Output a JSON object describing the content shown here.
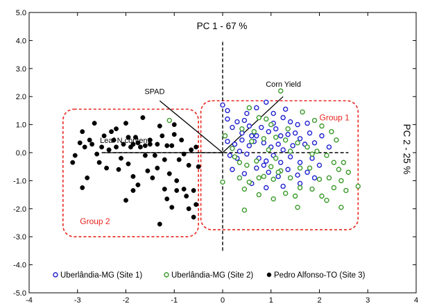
{
  "chart_data": {
    "type": "scatter",
    "x_axis_title": "PC 1 - 67 %",
    "y_axis_title": "PC 2 - 25 %",
    "xlim": [
      -4,
      4
    ],
    "ylim": [
      -5,
      5
    ],
    "x_ticks": [
      -4,
      -3,
      -2,
      -1,
      0,
      1,
      2,
      3,
      4
    ],
    "y_ticks": [
      5.0,
      4.0,
      3.0,
      2.0,
      1.0,
      0.0,
      -1.0,
      -2.0,
      -3.0,
      -4.0,
      -5.0
    ],
    "x_tick_labels": [
      "-4",
      "-3",
      "-2",
      "-1",
      "0",
      "1",
      "2",
      "3",
      "4"
    ],
    "y_tick_labels": [
      "5.0",
      "4.0",
      "3.0",
      "2.0",
      "1.0",
      "0.0",
      "-1.0",
      "-2.0",
      "-3.0",
      "-4.0",
      "-5.0"
    ],
    "colors": {
      "site1": "#1f1fd0",
      "site2": "#3a9a2a",
      "site3": "#000000",
      "group": "#e8261f"
    },
    "groups": [
      {
        "label": "Group 1",
        "x_range": [
          -0.45,
          2.8
        ],
        "y_range": [
          -2.75,
          1.85
        ]
      },
      {
        "label": "Group 2",
        "x_range": [
          -3.3,
          -0.5
        ],
        "y_range": [
          -3.0,
          1.55
        ]
      }
    ],
    "vectors": [
      {
        "label": "Corn Yield",
        "x": 1.25,
        "y": 2.0
      },
      {
        "label": "SPAD",
        "x": -1.3,
        "y": 1.85
      },
      {
        "label": "Leaf N content",
        "x": -2.45,
        "y": 0.0
      }
    ],
    "axis_dashes": {
      "x": [
        -2.5,
        2.6
      ],
      "y": [
        -3.5,
        4.0
      ]
    },
    "series": [
      {
        "name": "Uberlândia-MG (Site 1)",
        "marker": "open-circle",
        "points": [
          [
            0.0,
            1.7
          ],
          [
            0.1,
            1.5
          ],
          [
            0.3,
            1.1
          ],
          [
            0.5,
            1.4
          ],
          [
            0.7,
            1.6
          ],
          [
            0.9,
            1.8
          ],
          [
            1.05,
            1.4
          ],
          [
            1.3,
            1.55
          ],
          [
            1.4,
            1.1
          ],
          [
            1.55,
            1.0
          ],
          [
            0.2,
            0.9
          ],
          [
            0.4,
            0.7
          ],
          [
            0.55,
            0.95
          ],
          [
            0.7,
            0.6
          ],
          [
            0.8,
            0.9
          ],
          [
            0.95,
            0.75
          ],
          [
            1.1,
            0.85
          ],
          [
            1.2,
            0.6
          ],
          [
            1.35,
            0.65
          ],
          [
            1.5,
            0.7
          ],
          [
            1.6,
            0.5
          ],
          [
            1.8,
            0.7
          ],
          [
            0.1,
            0.4
          ],
          [
            0.25,
            0.3
          ],
          [
            0.4,
            0.45
          ],
          [
            0.55,
            0.25
          ],
          [
            0.65,
            0.4
          ],
          [
            0.85,
            0.35
          ],
          [
            1.0,
            0.2
          ],
          [
            1.15,
            0.3
          ],
          [
            1.25,
            0.1
          ],
          [
            1.45,
            0.25
          ],
          [
            1.7,
            0.3
          ],
          [
            1.9,
            0.35
          ],
          [
            2.05,
            0.6
          ],
          [
            2.2,
            0.2
          ],
          [
            0.15,
            -0.1
          ],
          [
            0.3,
            -0.2
          ],
          [
            0.5,
            -0.05
          ],
          [
            0.75,
            -0.2
          ],
          [
            0.9,
            -0.3
          ],
          [
            1.05,
            -0.1
          ],
          [
            1.2,
            -0.35
          ],
          [
            1.4,
            -0.15
          ],
          [
            1.6,
            -0.35
          ],
          [
            1.85,
            -0.2
          ],
          [
            2.0,
            -0.45
          ],
          [
            0.2,
            -0.6
          ],
          [
            0.45,
            -0.75
          ],
          [
            0.7,
            -0.55
          ],
          [
            0.95,
            -0.7
          ],
          [
            1.15,
            -0.85
          ],
          [
            1.35,
            -0.6
          ],
          [
            1.55,
            -0.8
          ],
          [
            1.75,
            -0.7
          ],
          [
            0.6,
            -1.1
          ],
          [
            0.9,
            -1.25
          ],
          [
            1.25,
            -1.2
          ],
          [
            1.6,
            -1.1
          ],
          [
            0.85,
            -0.45
          ],
          [
            0.35,
            0.05
          ],
          [
            0.6,
            0.6
          ],
          [
            1.05,
            1.05
          ],
          [
            1.25,
            1.25
          ],
          [
            0.45,
            1.15
          ],
          [
            1.75,
            1.05
          ],
          [
            0.1,
            1.2
          ],
          [
            1.9,
            -0.9
          ]
        ]
      },
      {
        "name": "Uberlândia-MG (Site 2)",
        "marker": "open-circle",
        "points": [
          [
            -1.1,
            1.15
          ],
          [
            0.05,
            0.6
          ],
          [
            0.2,
            0.15
          ],
          [
            0.35,
            -0.35
          ],
          [
            0.55,
            1.6
          ],
          [
            0.75,
            1.25
          ],
          [
            0.9,
            1.2
          ],
          [
            1.0,
            1.0
          ],
          [
            1.2,
            2.2
          ],
          [
            1.35,
            0.85
          ],
          [
            1.65,
            1.45
          ],
          [
            1.9,
            1.15
          ],
          [
            2.05,
            0.95
          ],
          [
            2.25,
            0.75
          ],
          [
            2.35,
            0.45
          ],
          [
            0.4,
            0.85
          ],
          [
            0.6,
            0.4
          ],
          [
            0.85,
            0.5
          ],
          [
            1.1,
            0.55
          ],
          [
            1.3,
            0.45
          ],
          [
            1.55,
            0.35
          ],
          [
            1.75,
            0.2
          ],
          [
            1.95,
            0.05
          ],
          [
            2.15,
            -0.1
          ],
          [
            2.3,
            -0.35
          ],
          [
            2.5,
            -0.35
          ],
          [
            2.6,
            -0.7
          ],
          [
            0.25,
            -0.15
          ],
          [
            0.5,
            -0.45
          ],
          [
            0.7,
            -0.3
          ],
          [
            0.85,
            -0.85
          ],
          [
            1.0,
            -0.5
          ],
          [
            1.2,
            -0.65
          ],
          [
            1.4,
            -0.9
          ],
          [
            1.6,
            -0.55
          ],
          [
            1.8,
            -0.55
          ],
          [
            2.0,
            -0.95
          ],
          [
            2.2,
            -0.9
          ],
          [
            2.4,
            -0.6
          ],
          [
            0.0,
            -1.05
          ],
          [
            0.35,
            -0.9
          ],
          [
            0.55,
            -1.05
          ],
          [
            0.75,
            -0.9
          ],
          [
            1.05,
            -0.95
          ],
          [
            1.3,
            -1.45
          ],
          [
            1.5,
            -1.55
          ],
          [
            1.85,
            -1.3
          ],
          [
            2.05,
            -1.55
          ],
          [
            2.3,
            -1.25
          ],
          [
            2.55,
            -1.35
          ],
          [
            2.8,
            -1.2
          ],
          [
            0.45,
            -1.3
          ],
          [
            0.75,
            -1.5
          ],
          [
            1.05,
            -1.65
          ],
          [
            1.6,
            -1.25
          ],
          [
            1.55,
            -1.95
          ],
          [
            2.15,
            -1.7
          ],
          [
            2.45,
            -1.95
          ],
          [
            0.45,
            -2.05
          ],
          [
            1.1,
            -0.2
          ],
          [
            1.15,
            -0.7
          ],
          [
            0.95,
            0.1
          ],
          [
            1.4,
            0.05
          ],
          [
            2.45,
            -1.0
          ],
          [
            0.65,
            0.75
          ],
          [
            1.85,
            -0.05
          ]
        ]
      },
      {
        "name": "Pedro Alfonso-TO (Site 3)",
        "marker": "filled-circle",
        "points": [
          [
            -3.1,
            -0.35
          ],
          [
            -3.05,
            -0.1
          ],
          [
            -2.95,
            0.35
          ],
          [
            -2.9,
            0.75
          ],
          [
            -2.85,
            0.2
          ],
          [
            -2.8,
            -0.9
          ],
          [
            -2.9,
            -1.25
          ],
          [
            -2.75,
            0.45
          ],
          [
            -2.65,
            1.05
          ],
          [
            -2.55,
            -0.35
          ],
          [
            -2.5,
            0.2
          ],
          [
            -2.45,
            0.6
          ],
          [
            -2.4,
            -0.55
          ],
          [
            -2.35,
            0.1
          ],
          [
            -2.25,
            0.45
          ],
          [
            -2.2,
            0.85
          ],
          [
            -2.15,
            -0.6
          ],
          [
            -2.1,
            -0.2
          ],
          [
            -2.05,
            0.3
          ],
          [
            -2.0,
            1.05
          ],
          [
            -1.95,
            -0.4
          ],
          [
            -1.9,
            0.2
          ],
          [
            -1.85,
            -0.85
          ],
          [
            -1.8,
            0.55
          ],
          [
            -1.75,
            -1.15
          ],
          [
            -1.7,
            0.2
          ],
          [
            -1.65,
            1.25
          ],
          [
            -1.6,
            0.25
          ],
          [
            -1.55,
            -0.65
          ],
          [
            -1.5,
            0.3
          ],
          [
            -1.45,
            -0.9
          ],
          [
            -1.4,
            -0.1
          ],
          [
            -1.35,
            0.3
          ],
          [
            -1.3,
            0.95
          ],
          [
            -1.25,
            0.6
          ],
          [
            -1.2,
            -0.25
          ],
          [
            -1.15,
            0.25
          ],
          [
            -1.1,
            -0.75
          ],
          [
            -1.05,
            0.25
          ],
          [
            -1.0,
            0.65
          ],
          [
            -0.95,
            -1.0
          ],
          [
            -0.9,
            -0.25
          ],
          [
            -0.85,
            0.45
          ],
          [
            -0.8,
            -1.3
          ],
          [
            -0.75,
            -1.55
          ],
          [
            -0.7,
            -2.0
          ],
          [
            -0.6,
            -1.35
          ],
          [
            -0.55,
            -1.85
          ],
          [
            -0.6,
            -2.3
          ],
          [
            -0.65,
            0.1
          ],
          [
            -0.7,
            -0.45
          ],
          [
            -2.6,
            -0.05
          ],
          [
            -2.3,
            0.75
          ],
          [
            -1.95,
            0.55
          ],
          [
            -1.6,
            -0.1
          ],
          [
            -1.35,
            -0.55
          ],
          [
            -1.15,
            -1.65
          ],
          [
            -1.05,
            -1.95
          ],
          [
            -1.3,
            -2.55
          ],
          [
            -1.85,
            -1.35
          ],
          [
            -2.0,
            -1.7
          ],
          [
            -0.95,
            -1.35
          ],
          [
            -0.8,
            -0.05
          ],
          [
            -1.75,
            0.35
          ],
          [
            -1.5,
            0.45
          ],
          [
            -2.2,
            0.2
          ],
          [
            -1.0,
            1.0
          ],
          [
            -2.7,
            0.3
          ],
          [
            -0.5,
            -0.5
          ],
          [
            -1.2,
            -1.3
          ],
          [
            -0.55,
            0.2
          ],
          [
            -1.85,
            0.3
          ]
        ]
      }
    ]
  }
}
